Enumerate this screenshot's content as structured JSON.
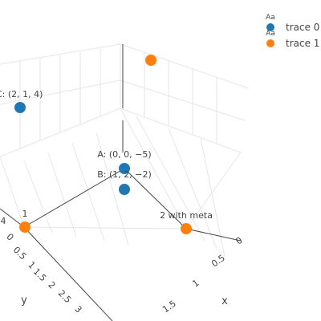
{
  "chart_data": {
    "type": "scatter3d",
    "title": "",
    "axes": {
      "x": {
        "title": "x",
        "tick_labels": [
          "0",
          "0.5",
          "1",
          "1.5"
        ]
      },
      "y": {
        "title": "y",
        "tick_labels": [
          "0",
          "0.5",
          "1",
          "1.5",
          "2",
          "2.5",
          "3"
        ]
      },
      "z": {
        "tick_labels": [
          "4"
        ]
      }
    },
    "series": [
      {
        "name": "trace 0",
        "color": "#1f77b4",
        "points": [
          {
            "x": 0,
            "y": 0,
            "z": -5,
            "label": "A: (0, 0, −5)"
          },
          {
            "x": 1,
            "y": 2,
            "z": -2,
            "label": "B: (1, 2, −2)"
          },
          {
            "x": 2,
            "y": 1,
            "z": 4,
            "label": "C: (2, 1, 4)"
          }
        ]
      },
      {
        "name": "trace 1",
        "color": "#ff7f0e",
        "points": [
          {
            "label": "1"
          },
          {
            "label": "2 with meta"
          },
          {
            "label": ""
          }
        ]
      }
    ],
    "legend": {
      "placement": "top-right",
      "symbol_text": "Aa",
      "items": [
        "trace 0",
        "trace 1"
      ]
    },
    "grid": true
  }
}
